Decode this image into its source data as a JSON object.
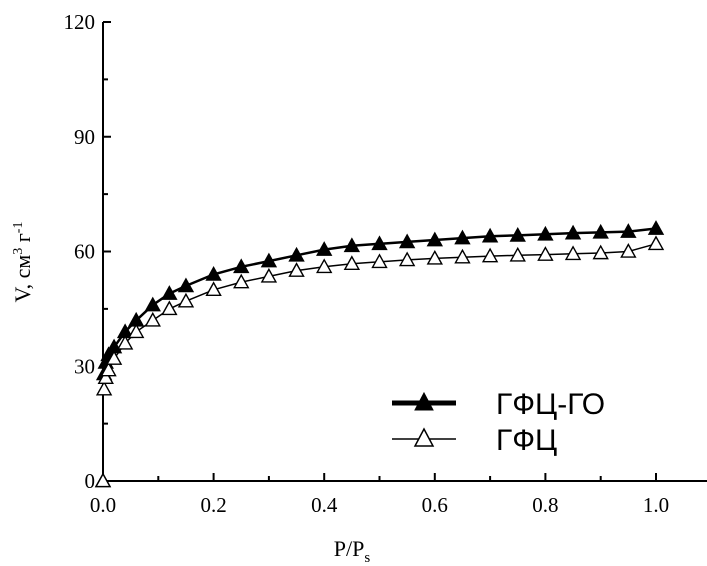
{
  "chart_data": {
    "type": "scatter",
    "title": "",
    "xlabel": "P/P",
    "xlabel_sub": "s",
    "ylabel": "V, см",
    "ylabel_sup1": "3",
    "ylabel_mid": " г",
    "ylabel_sup2": "-1",
    "xlim": [
      0.0,
      1.0
    ],
    "ylim": [
      0,
      120
    ],
    "xticks": [
      "0.0",
      "0.2",
      "0.4",
      "0.6",
      "0.8",
      "1.0"
    ],
    "yticks": [
      "0",
      "30",
      "60",
      "90",
      "120"
    ],
    "legend_position": "bottom-right",
    "series": [
      {
        "name": "ГФЦ-ГО",
        "marker": "filled-triangle",
        "color": "#000000",
        "x": [
          0.0,
          0.002,
          0.005,
          0.01,
          0.02,
          0.04,
          0.06,
          0.09,
          0.12,
          0.15,
          0.2,
          0.25,
          0.3,
          0.35,
          0.4,
          0.45,
          0.5,
          0.55,
          0.6,
          0.65,
          0.7,
          0.75,
          0.8,
          0.85,
          0.9,
          0.95,
          1.0
        ],
        "y": [
          0,
          28,
          31,
          33,
          35,
          39,
          42,
          46,
          49,
          51,
          54,
          56,
          57.5,
          59,
          60.5,
          61.5,
          62,
          62.5,
          63,
          63.5,
          64,
          64.2,
          64.5,
          64.8,
          65,
          65.2,
          66
        ]
      },
      {
        "name": "ГФЦ",
        "marker": "open-triangle",
        "color": "#000000",
        "x": [
          0.0,
          0.002,
          0.005,
          0.01,
          0.02,
          0.04,
          0.06,
          0.09,
          0.12,
          0.15,
          0.2,
          0.25,
          0.3,
          0.35,
          0.4,
          0.45,
          0.5,
          0.55,
          0.6,
          0.65,
          0.7,
          0.75,
          0.8,
          0.85,
          0.9,
          0.95,
          1.0
        ],
        "y": [
          0,
          24,
          27,
          29,
          32,
          36,
          39,
          42,
          45,
          47,
          50,
          52,
          53.5,
          55,
          56,
          56.8,
          57.3,
          57.8,
          58.2,
          58.5,
          58.8,
          59,
          59.2,
          59.4,
          59.6,
          60,
          62
        ]
      }
    ]
  }
}
